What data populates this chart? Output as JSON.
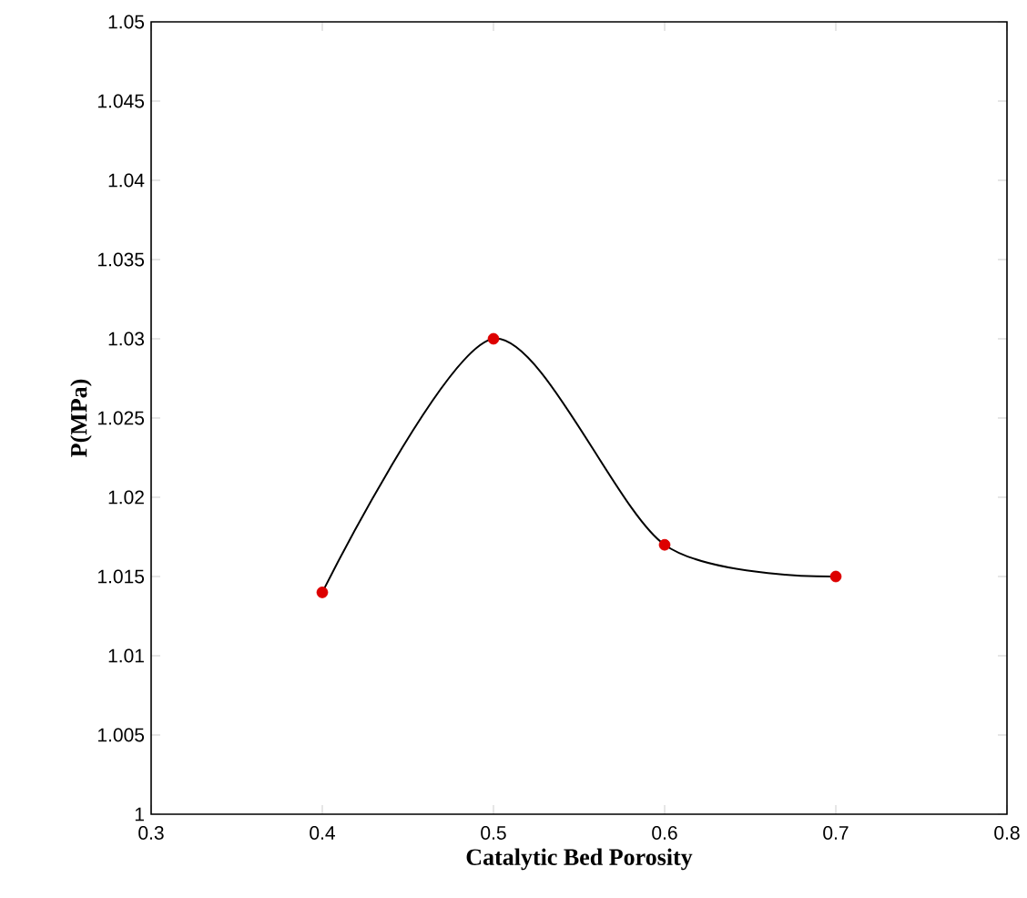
{
  "chart_data": {
    "type": "line",
    "xlabel": "Catalytic Bed Porosity",
    "ylabel": "P(MPa)",
    "x": [
      0.4,
      0.5,
      0.6,
      0.7
    ],
    "series": [
      {
        "color": "#000000",
        "values": [
          1.014,
          1.03,
          1.017,
          1.015
        ]
      },
      {
        "type": "scatter",
        "color": "#dd0000",
        "marker": "circle",
        "values": [
          1.014,
          1.03,
          1.017,
          1.015
        ]
      }
    ],
    "xlim": [
      0.3,
      0.8
    ],
    "xticks": [
      0.3,
      0.4,
      0.5,
      0.6,
      0.7,
      0.8
    ],
    "ylim": [
      1,
      1.05
    ],
    "yticks": [
      1,
      1.005,
      1.01,
      1.015,
      1.02,
      1.025,
      1.03,
      1.035,
      1.04,
      1.045,
      1.05
    ]
  }
}
